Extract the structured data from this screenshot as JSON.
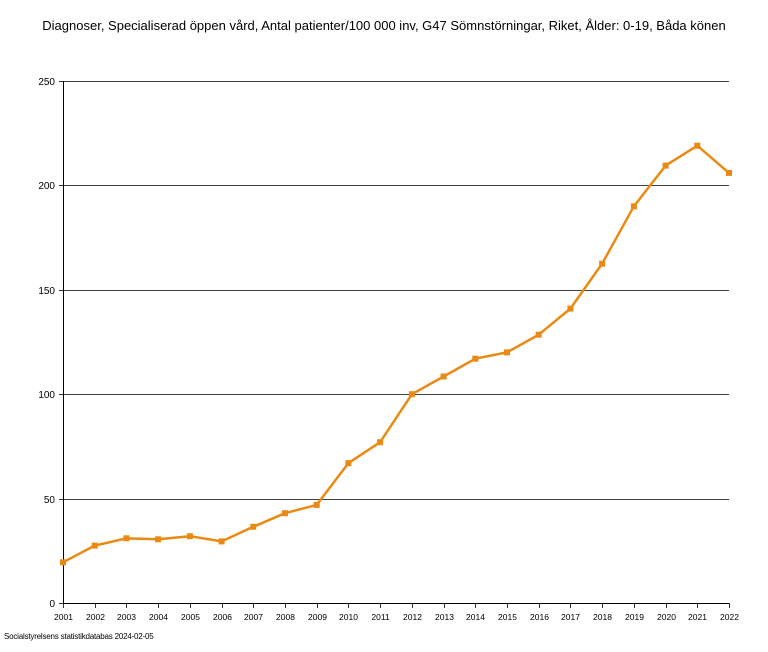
{
  "chart_data": {
    "type": "line",
    "title": "Diagnoser, Specialiserad öppen vård, Antal patienter/100 000 inv, G47 Sömnstörningar, Riket, Ålder: 0-19, Båda könen",
    "xlabel": "",
    "ylabel": "",
    "x": [
      "2001",
      "2002",
      "2003",
      "2004",
      "2005",
      "2006",
      "2007",
      "2008",
      "2009",
      "2010",
      "2011",
      "2012",
      "2013",
      "2014",
      "2015",
      "2016",
      "2017",
      "2018",
      "2019",
      "2020",
      "2021",
      "2022"
    ],
    "series": [
      {
        "values": [
          19.5,
          27.5,
          31,
          30.5,
          32,
          29.5,
          36.5,
          43,
          47,
          67,
          77,
          100,
          108.5,
          117,
          120,
          128.5,
          141,
          162.5,
          190,
          209.5,
          219,
          206
        ]
      }
    ],
    "ylim": [
      0,
      250
    ],
    "yticks": [
      0,
      50,
      100,
      150,
      200,
      250
    ],
    "grid": true,
    "legend": "none",
    "line_color": "#ea8a12"
  },
  "footer": {
    "source": "Socialstyrelsens statistikdatabas 2024-02-05"
  }
}
